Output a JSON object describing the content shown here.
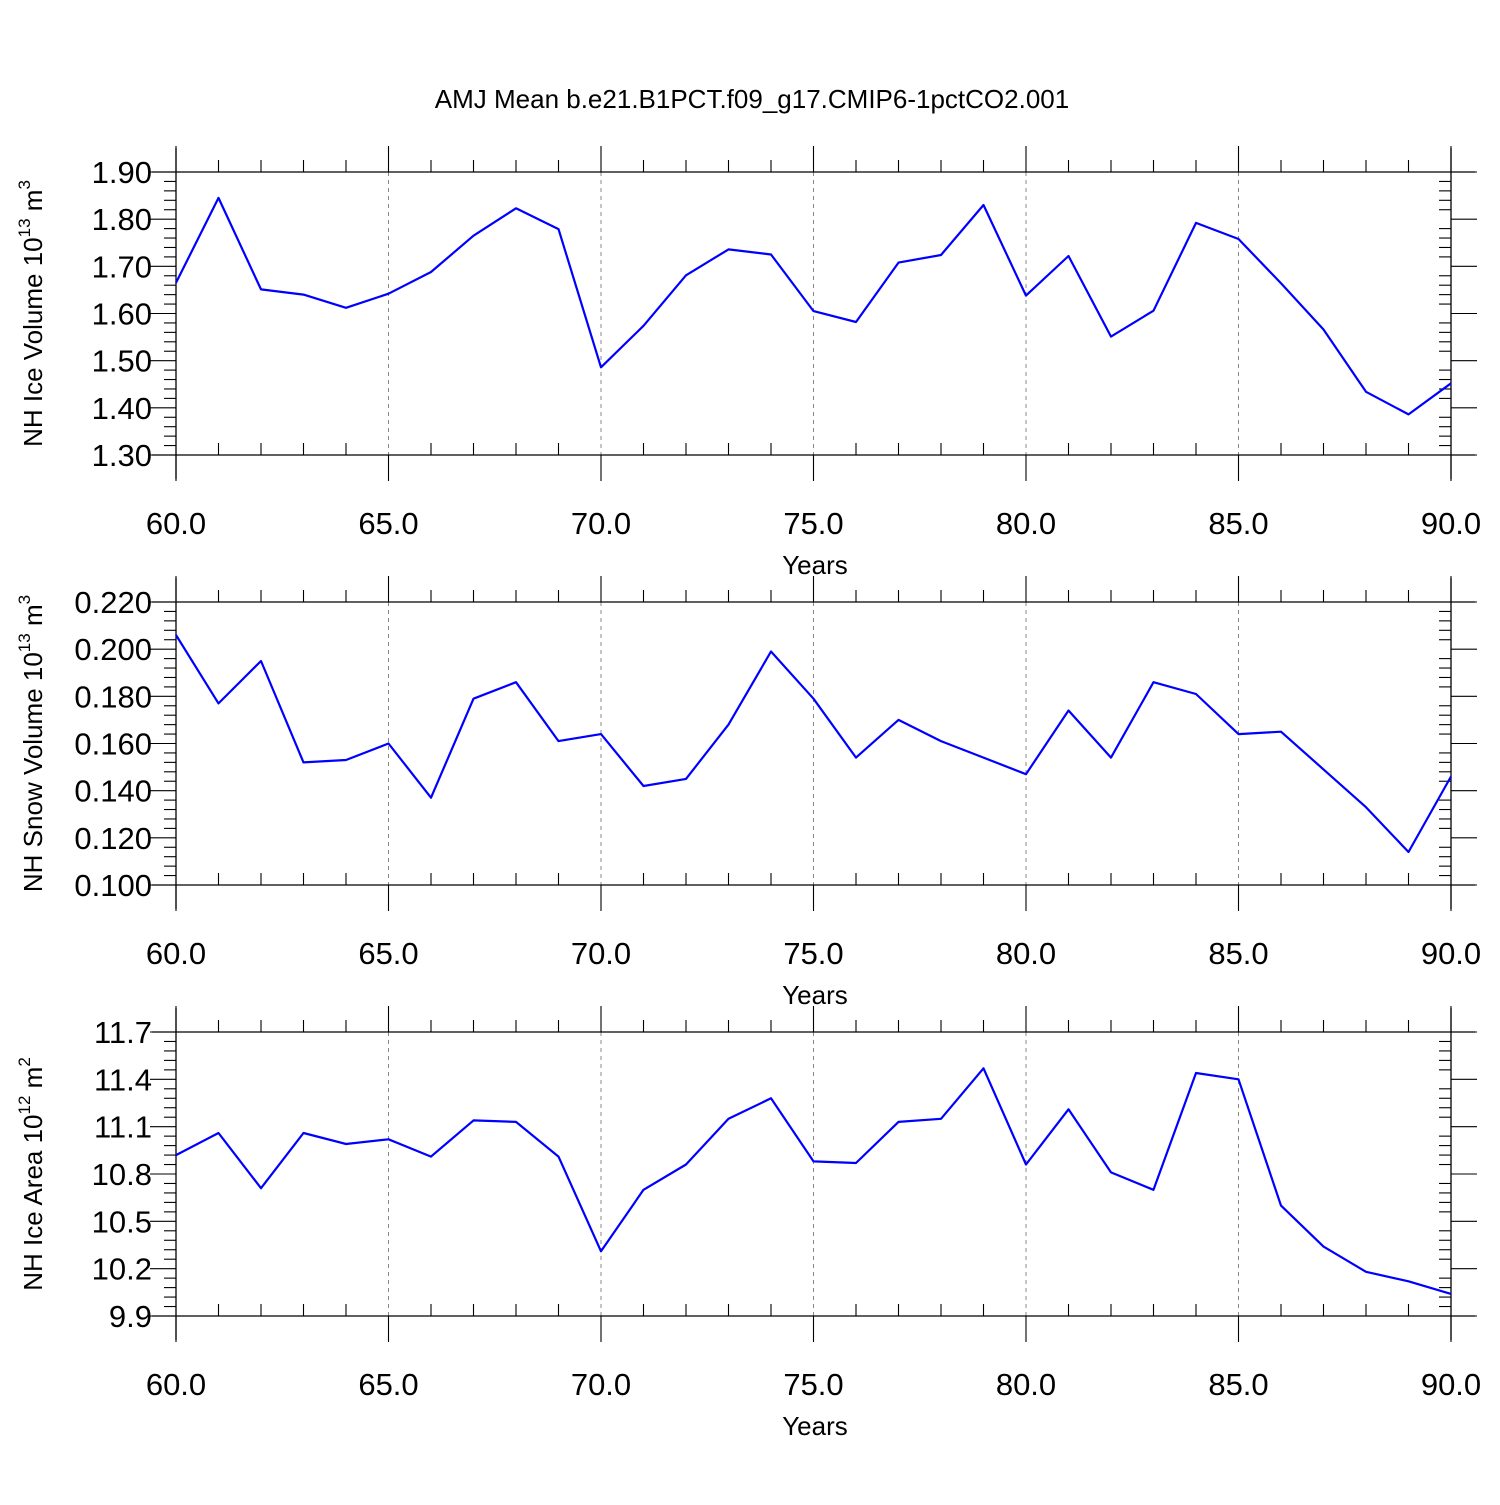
{
  "title": "AMJ Mean b.e21.B1PCT.f09_g17.CMIP6-1pctCO2.001",
  "chart_data": [
    {
      "type": "line",
      "ylabel": "NH Ice Volume 10",
      "ylabel_sup": "13",
      "ylabel_unit": " m",
      "ylabel_unit_sup": "3",
      "xlabel": "Years",
      "xlim": [
        60,
        90
      ],
      "ylim": [
        1.3,
        1.9
      ],
      "x_ticks": [
        60,
        65,
        70,
        75,
        80,
        85,
        90
      ],
      "x_tick_labels": [
        "60.0",
        "65.0",
        "70.0",
        "75.0",
        "80.0",
        "85.0",
        "90.0"
      ],
      "y_ticks": [
        1.3,
        1.4,
        1.5,
        1.6,
        1.7,
        1.8,
        1.9
      ],
      "y_tick_labels": [
        "1.30",
        "1.40",
        "1.50",
        "1.60",
        "1.70",
        "1.80",
        "1.90"
      ],
      "x_minor_step": 1,
      "y_minor_step": 0.02,
      "x": [
        60,
        61,
        62,
        63,
        64,
        65,
        66,
        67,
        68,
        69,
        70,
        71,
        72,
        73,
        74,
        75,
        76,
        77,
        78,
        79,
        80,
        81,
        82,
        83,
        84,
        85,
        86,
        87,
        88,
        89,
        90
      ],
      "values": [
        1.665,
        1.845,
        1.651,
        1.64,
        1.612,
        1.642,
        1.688,
        1.765,
        1.823,
        1.779,
        1.486,
        1.574,
        1.681,
        1.736,
        1.725,
        1.605,
        1.582,
        1.708,
        1.724,
        1.83,
        1.638,
        1.722,
        1.551,
        1.606,
        1.792,
        1.758,
        1.664,
        1.566,
        1.434,
        1.386,
        1.452
      ],
      "color": "#0000ff",
      "grid": "vertical-dashed-at-major-x"
    },
    {
      "type": "line",
      "ylabel": "NH Snow Volume 10",
      "ylabel_sup": "13",
      "ylabel_unit": " m",
      "ylabel_unit_sup": "3",
      "xlabel": "Years",
      "xlim": [
        60,
        90
      ],
      "ylim": [
        0.1,
        0.22
      ],
      "x_ticks": [
        60,
        65,
        70,
        75,
        80,
        85,
        90
      ],
      "x_tick_labels": [
        "60.0",
        "65.0",
        "70.0",
        "75.0",
        "80.0",
        "85.0",
        "90.0"
      ],
      "y_ticks": [
        0.1,
        0.12,
        0.14,
        0.16,
        0.18,
        0.2,
        0.22
      ],
      "y_tick_labels": [
        "0.100",
        "0.120",
        "0.140",
        "0.160",
        "0.180",
        "0.200",
        "0.220"
      ],
      "x_minor_step": 1,
      "y_minor_step": 0.004,
      "x": [
        60,
        61,
        62,
        63,
        64,
        65,
        66,
        67,
        68,
        69,
        70,
        71,
        72,
        73,
        74,
        75,
        76,
        77,
        78,
        79,
        80,
        81,
        82,
        83,
        84,
        85,
        86,
        87,
        88,
        89,
        90
      ],
      "values": [
        0.206,
        0.177,
        0.195,
        0.152,
        0.153,
        0.16,
        0.137,
        0.179,
        0.186,
        0.161,
        0.164,
        0.142,
        0.145,
        0.168,
        0.199,
        0.179,
        0.154,
        0.17,
        0.161,
        0.154,
        0.147,
        0.174,
        0.154,
        0.186,
        0.181,
        0.164,
        0.165,
        0.149,
        0.133,
        0.114,
        0.146
      ],
      "color": "#0000ff",
      "grid": "vertical-dashed-at-major-x"
    },
    {
      "type": "line",
      "ylabel": "NH Ice Area 10",
      "ylabel_sup": "12",
      "ylabel_unit": " m",
      "ylabel_unit_sup": "2",
      "xlabel": "Years",
      "xlim": [
        60,
        90
      ],
      "ylim": [
        9.9,
        11.7
      ],
      "x_ticks": [
        60,
        65,
        70,
        75,
        80,
        85,
        90
      ],
      "x_tick_labels": [
        "60.0",
        "65.0",
        "70.0",
        "75.0",
        "80.0",
        "85.0",
        "90.0"
      ],
      "y_ticks": [
        9.9,
        10.2,
        10.5,
        10.8,
        11.1,
        11.4,
        11.7
      ],
      "y_tick_labels": [
        "9.9",
        "10.2",
        "10.5",
        "10.8",
        "11.1",
        "11.4",
        "11.7"
      ],
      "x_minor_step": 1,
      "y_minor_step": 0.06,
      "x": [
        60,
        61,
        62,
        63,
        64,
        65,
        66,
        67,
        68,
        69,
        70,
        71,
        72,
        73,
        74,
        75,
        76,
        77,
        78,
        79,
        80,
        81,
        82,
        83,
        84,
        85,
        86,
        87,
        88,
        89,
        90
      ],
      "values": [
        10.92,
        11.06,
        10.71,
        11.06,
        10.99,
        11.02,
        10.91,
        11.14,
        11.13,
        10.91,
        10.31,
        10.7,
        10.86,
        11.15,
        11.28,
        10.88,
        10.87,
        11.13,
        11.15,
        11.47,
        10.86,
        11.21,
        10.81,
        10.7,
        11.44,
        11.4,
        10.6,
        10.34,
        10.18,
        10.12,
        10.04
      ],
      "color": "#0000ff",
      "grid": "vertical-dashed-at-major-x"
    }
  ]
}
